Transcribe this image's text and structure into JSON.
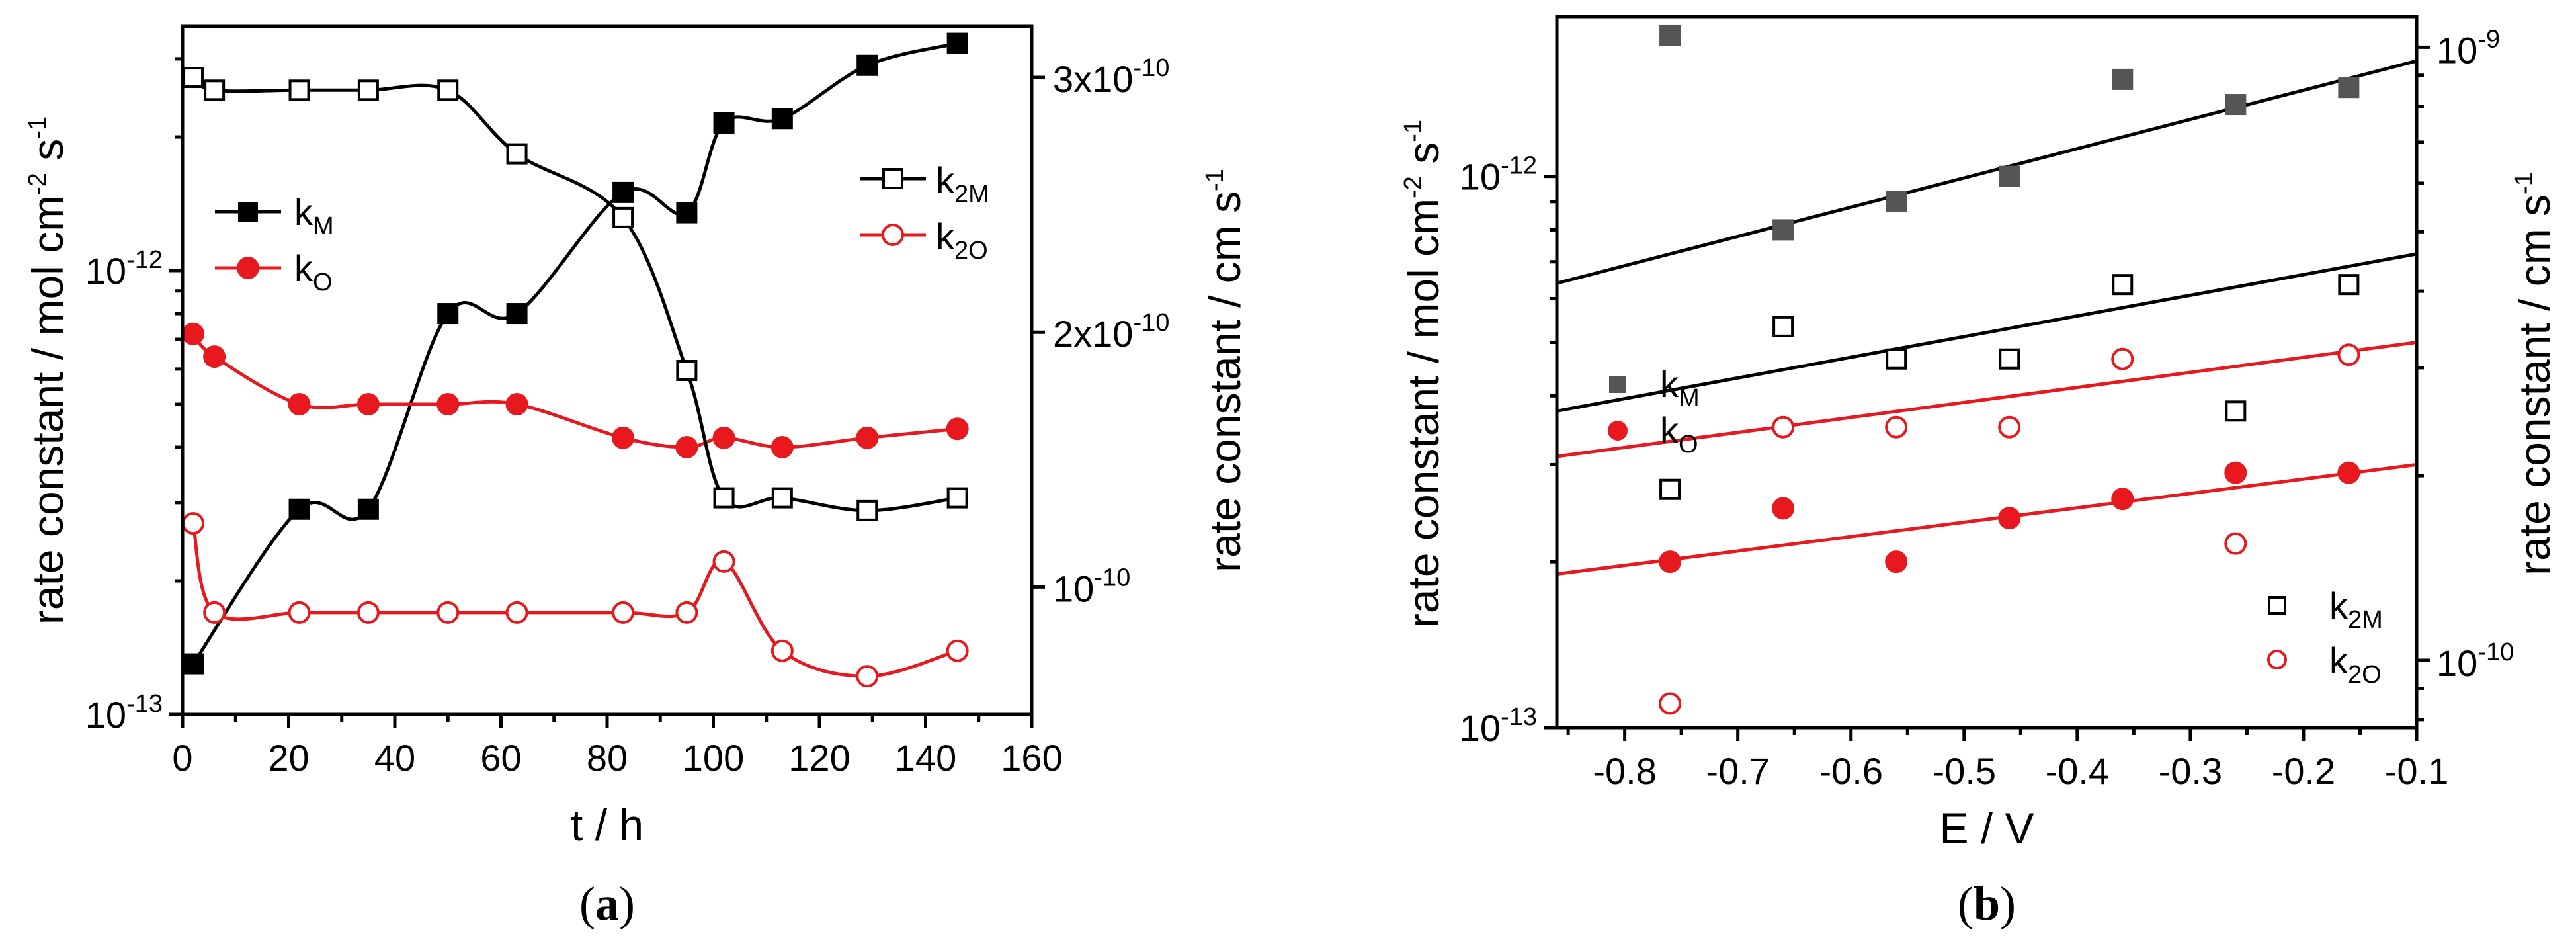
{
  "panel_a_caption": {
    "open": "(",
    "letter": "a",
    "close": ")"
  },
  "panel_b_caption": {
    "open": "(",
    "letter": "b",
    "close": ")"
  },
  "chart_data": [
    {
      "panel": "a",
      "type": "line",
      "xlabel": "t / h",
      "ylabel_left": "rate constant / mol cm",
      "ylabel_left_parts": {
        "a": "rate constant / mol cm",
        "e1": "-2",
        "b": " s",
        "e2": "-1"
      },
      "ylabel_right": "rate constant / cm s",
      "ylabel_right_parts": {
        "a": "rate constant / cm s",
        "e1": "-1"
      },
      "xlim": [
        0,
        160
      ],
      "ylim_left_log10": [
        -13,
        -11.45
      ],
      "ylim_right": [
        5e-11,
        3.2e-10
      ],
      "x_ticks": [
        "0",
        "20",
        "40",
        "60",
        "80",
        "100",
        "120",
        "140",
        "160"
      ],
      "y_left_ticks": [
        {
          "value": 1e-13,
          "base": "10",
          "exp": "-13"
        },
        {
          "value": 1e-12,
          "base": "10",
          "exp": "-12"
        }
      ],
      "y_right_ticks": [
        {
          "value": 1e-10,
          "mant": "10",
          "exp": "-10"
        },
        {
          "value": 2e-10,
          "mant": "2x10",
          "exp": "-10"
        },
        {
          "value": 3e-10,
          "mant": "3x10",
          "exp": "-10"
        }
      ],
      "legend_left": [
        {
          "name": "k",
          "sub": "M",
          "color": "#000000",
          "marker": "square-filled"
        },
        {
          "name": "k",
          "sub": "O",
          "color": "#e8191e",
          "marker": "circle-filled"
        }
      ],
      "legend_right": [
        {
          "name": "k",
          "sub": "2M",
          "color": "#000000",
          "marker": "square-open"
        },
        {
          "name": "k",
          "sub": "2O",
          "color": "#e8191e",
          "marker": "circle-open"
        }
      ],
      "series": [
        {
          "name": "kM",
          "axis": "left",
          "color": "#000000",
          "marker": "square-filled",
          "x": [
            2,
            22,
            35,
            50,
            63,
            83,
            95,
            102,
            113,
            129,
            146
          ],
          "y": [
            1.3e-13,
            2.9e-13,
            2.9e-13,
            8e-13,
            8e-13,
            1.5e-12,
            1.35e-12,
            2.15e-12,
            2.2e-12,
            2.9e-12,
            3.25e-12
          ]
        },
        {
          "name": "kO",
          "axis": "left",
          "color": "#e8191e",
          "marker": "circle-filled",
          "x": [
            2,
            6,
            22,
            35,
            50,
            63,
            83,
            95,
            102,
            113,
            129,
            146
          ],
          "y": [
            7.2e-13,
            6.4e-13,
            5e-13,
            5e-13,
            5e-13,
            5e-13,
            4.2e-13,
            4e-13,
            4.2e-13,
            4e-13,
            4.2e-13,
            4.4e-13
          ]
        },
        {
          "name": "k2M",
          "axis": "right",
          "color": "#000000",
          "marker": "square-open",
          "x": [
            2,
            6,
            22,
            35,
            50,
            63,
            83,
            95,
            102,
            113,
            129,
            146
          ],
          "y": [
            3e-10,
            2.95e-10,
            2.95e-10,
            2.95e-10,
            2.95e-10,
            2.7e-10,
            2.45e-10,
            1.85e-10,
            1.35e-10,
            1.35e-10,
            1.3e-10,
            1.35e-10
          ]
        },
        {
          "name": "k2O",
          "axis": "right",
          "color": "#e8191e",
          "marker": "circle-open",
          "x": [
            2,
            6,
            22,
            35,
            50,
            63,
            83,
            95,
            102,
            113,
            129,
            146
          ],
          "y": [
            1.25e-10,
            9e-11,
            9e-11,
            9e-11,
            9e-11,
            9e-11,
            9e-11,
            9e-11,
            1.1e-10,
            7.5e-11,
            6.5e-11,
            7.5e-11
          ]
        }
      ]
    },
    {
      "panel": "b",
      "type": "scatter",
      "xlabel": "E / V",
      "ylabel_left_parts": {
        "a": "rate constant / mol cm",
        "e1": "-2",
        "b": " s",
        "e2": "-1"
      },
      "ylabel_right_parts": {
        "a": "rate constant / cm s",
        "e1": "-1"
      },
      "xlim": [
        -0.86,
        -0.1
      ],
      "ylim_left_log10": [
        -13,
        -11.71
      ],
      "ylim_right_log10": [
        -10.11,
        -8.95
      ],
      "x_ticks": [
        "-0.8",
        "-0.7",
        "-0.6",
        "-0.5",
        "-0.4",
        "-0.3",
        "-0.2",
        "-0.1"
      ],
      "x_tick_values": [
        -0.8,
        -0.7,
        -0.6,
        -0.5,
        -0.4,
        -0.3,
        -0.2,
        -0.1
      ],
      "y_left_ticks": [
        {
          "value": 1e-13,
          "base": "10",
          "exp": "-13"
        },
        {
          "value": 1e-12,
          "base": "10",
          "exp": "-12"
        }
      ],
      "y_right_ticks": [
        {
          "value": 1e-10,
          "base": "10",
          "exp": "-10"
        },
        {
          "value": 1e-09,
          "base": "10",
          "exp": "-9"
        }
      ],
      "legend_left": [
        {
          "name": "k",
          "sub": "M",
          "color": "#555555",
          "marker": "square-filled"
        },
        {
          "name": "k",
          "sub": "O",
          "color": "#e8191e",
          "marker": "circle-filled"
        }
      ],
      "legend_right": [
        {
          "name": "k",
          "sub": "2M",
          "color": "#000000",
          "marker": "square-open"
        },
        {
          "name": "k",
          "sub": "2O",
          "color": "#e8191e",
          "marker": "circle-open"
        }
      ],
      "series": [
        {
          "name": "kM",
          "axis": "left",
          "color": "#555555",
          "marker": "square-filled",
          "x": [
            -0.76,
            -0.66,
            -0.56,
            -0.46,
            -0.36,
            -0.26,
            -0.16
          ],
          "y": [
            1.8e-12,
            8e-13,
            9e-13,
            1e-12,
            1.5e-12,
            1.35e-12,
            1.45e-12
          ]
        },
        {
          "name": "kO",
          "axis": "left",
          "color": "#e8191e",
          "marker": "circle-filled",
          "x": [
            -0.76,
            -0.66,
            -0.56,
            -0.46,
            -0.36,
            -0.26,
            -0.16
          ],
          "y": [
            2e-13,
            2.5e-13,
            2e-13,
            2.4e-13,
            2.6e-13,
            2.9e-13,
            2.9e-13
          ]
        },
        {
          "name": "k2M",
          "axis": "right",
          "color": "#000000",
          "marker": "square-open",
          "x": [
            -0.76,
            -0.66,
            -0.56,
            -0.46,
            -0.36,
            -0.26,
            -0.16
          ],
          "y": [
            1.9e-10,
            3.5e-10,
            3.1e-10,
            3.1e-10,
            4.1e-10,
            2.55e-10,
            4.1e-10
          ]
        },
        {
          "name": "k2O",
          "axis": "right",
          "color": "#e8191e",
          "marker": "circle-open",
          "x": [
            -0.76,
            -0.66,
            -0.56,
            -0.46,
            -0.36,
            -0.26,
            -0.16
          ],
          "y": [
            8.5e-11,
            2.4e-10,
            2.4e-10,
            2.4e-10,
            3.1e-10,
            1.55e-10,
            3.15e-10
          ]
        }
      ],
      "fits": [
        {
          "name": "kM fit",
          "axis": "left",
          "color": "#000000",
          "x": [
            -0.86,
            -0.1
          ],
          "y": [
            6.4e-13,
            1.62e-12
          ]
        },
        {
          "name": "kO fit",
          "axis": "left",
          "color": "#e8191e",
          "x": [
            -0.86,
            -0.1
          ],
          "y": [
            1.9e-13,
            3e-13
          ]
        },
        {
          "name": "k2M fit",
          "axis": "right",
          "color": "#000000",
          "x": [
            -0.86,
            -0.1
          ],
          "y": [
            2.55e-10,
            4.6e-10
          ]
        },
        {
          "name": "k2O fit",
          "axis": "right",
          "color": "#e8191e",
          "x": [
            -0.86,
            -0.1
          ],
          "y": [
            2.15e-10,
            3.3e-10
          ]
        }
      ]
    }
  ]
}
